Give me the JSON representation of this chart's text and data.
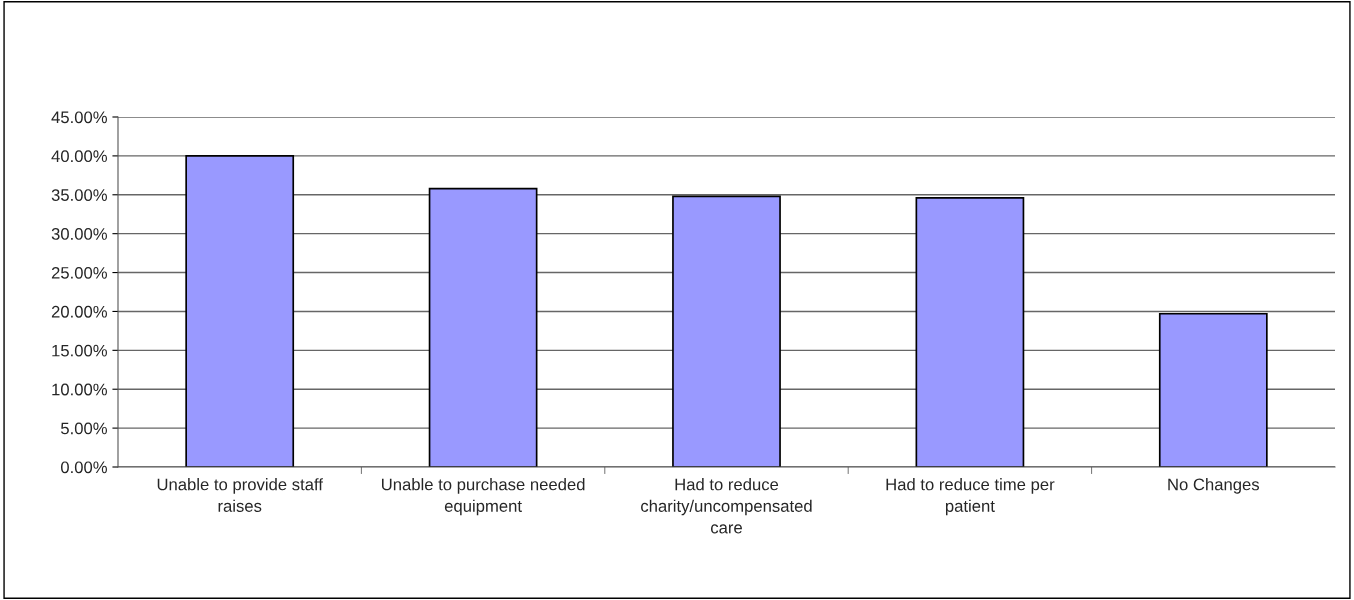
{
  "chart_data": {
    "type": "bar",
    "categories": [
      "Unable to provide staff raises",
      "Unable to purchase needed equipment",
      "Had to reduce charity/uncompensated care",
      "Had to reduce time per patient",
      "No Changes"
    ],
    "values": [
      40.0,
      35.8,
      34.8,
      34.6,
      19.7
    ],
    "color": "#9999ff",
    "ylim": [
      0,
      45
    ],
    "yticks": [
      {
        "value": 0,
        "label": "0.00%"
      },
      {
        "value": 5,
        "label": "5.00%"
      },
      {
        "value": 10,
        "label": "10.00%"
      },
      {
        "value": 15,
        "label": "15.00%"
      },
      {
        "value": 20,
        "label": "20.00%"
      },
      {
        "value": 25,
        "label": "25.00%"
      },
      {
        "value": 30,
        "label": "30.00%"
      },
      {
        "value": 35,
        "label": "35.00%"
      },
      {
        "value": 40,
        "label": "40.00%"
      },
      {
        "value": 45,
        "label": "45.00%"
      }
    ],
    "grid": "y",
    "legend": false
  }
}
